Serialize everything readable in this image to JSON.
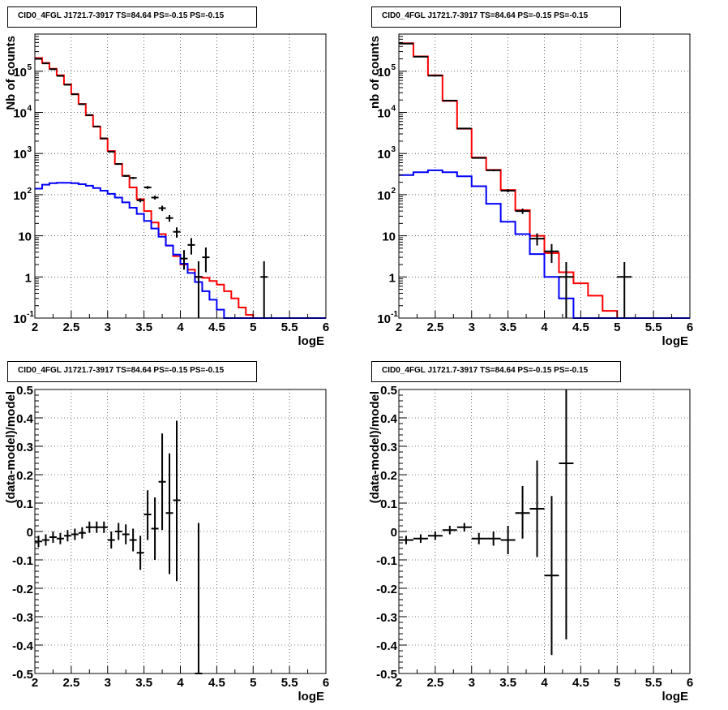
{
  "colors": {
    "total_model": "#ff0000",
    "source_model": "#0000ff",
    "data": "#000000"
  },
  "panels": [
    {
      "title": "CID0_4FGL J1721.7-3917 TS=84.64 PS=-0.15 PS=-0.15",
      "chart_data": {
        "type": "line",
        "xlabel": "logE",
        "ylabel": "Nb of counts",
        "xlim": [
          2,
          6
        ],
        "ylim": [
          0.1,
          800000
        ],
        "yscale": "log",
        "grid": true,
        "x_ticks": [
          "2",
          "2.5",
          "3",
          "3.5",
          "4",
          "4.5",
          "5",
          "5.5",
          "6"
        ],
        "y_ticks": [
          {
            "v": 0.1,
            "l": "10"
          },
          {
            "v": 1,
            "l": "1"
          },
          {
            "v": 10,
            "l": "10"
          },
          {
            "v": 100,
            "l": "10"
          },
          {
            "v": 1000,
            "l": "10"
          },
          {
            "v": 10000,
            "l": "10"
          },
          {
            "v": 100000,
            "l": "10"
          }
        ],
        "y_tick_exponents": [
          "-1",
          "",
          "",
          "2",
          "3",
          "4",
          "5"
        ],
        "bin_edges": [
          2.0,
          2.1,
          2.2,
          2.3,
          2.4,
          2.5,
          2.6,
          2.7,
          2.8,
          2.9,
          3.0,
          3.1,
          3.2,
          3.3,
          3.4,
          3.5,
          3.6,
          3.7,
          3.8,
          3.9,
          4.0,
          4.1,
          4.2,
          4.3,
          4.4,
          4.5,
          4.6,
          4.7,
          4.8,
          4.9,
          5.0,
          5.1,
          5.2,
          5.3,
          5.4,
          5.5,
          5.6,
          5.7,
          5.8,
          5.9,
          6.0
        ],
        "series": [
          {
            "name": "",
            "color_key": "total_model",
            "kind": "step",
            "values": [
              210000,
              160000,
              115000,
              80000,
              48000,
              28000,
              16000,
              8500,
              4500,
              2300,
              1150,
              560,
              290,
              150,
              78,
              40,
              21,
              11,
              5.8,
              3.2,
              2.0,
              1.5,
              1.0,
              0.95,
              0.8,
              0.65,
              0.45,
              0.3,
              0.18,
              0.12,
              0.1,
              0.1,
              0.1,
              0.1,
              0.1,
              0.1,
              0.1,
              0.1,
              0.1,
              0.1
            ]
          },
          {
            "name": "",
            "color_key": "source_model",
            "kind": "step",
            "values": [
              140,
              175,
              190,
              195,
              195,
              190,
              180,
              165,
              145,
              125,
              105,
              85,
              65,
              48,
              34,
              23,
              15,
              9.5,
              5.8,
              3.5,
              2.1,
              1.25,
              0.75,
              0.45,
              0.28,
              0.16,
              0.1,
              0.1,
              0.1,
              0.1,
              0.1,
              0.1,
              0.1,
              0.1,
              0.1,
              0.1,
              0.1,
              0.1,
              0.1,
              0.1
            ]
          }
        ],
        "data_points": [
          {
            "x": 2.05,
            "y": 200000,
            "lo": 199000,
            "hi": 201000
          },
          {
            "x": 2.15,
            "y": 155000,
            "lo": 154000,
            "hi": 156000
          },
          {
            "x": 2.25,
            "y": 112000,
            "lo": 111000,
            "hi": 113000
          },
          {
            "x": 2.35,
            "y": 77000,
            "lo": 76500,
            "hi": 77500
          },
          {
            "x": 2.45,
            "y": 47000,
            "lo": 46500,
            "hi": 47500
          },
          {
            "x": 2.55,
            "y": 27500,
            "lo": 27100,
            "hi": 27900
          },
          {
            "x": 2.65,
            "y": 15800,
            "lo": 15500,
            "hi": 16100
          },
          {
            "x": 2.75,
            "y": 8600,
            "lo": 8400,
            "hi": 8800
          },
          {
            "x": 2.85,
            "y": 4550,
            "lo": 4450,
            "hi": 4650
          },
          {
            "x": 2.95,
            "y": 2330,
            "lo": 2280,
            "hi": 2380
          },
          {
            "x": 3.05,
            "y": 1110,
            "lo": 1080,
            "hi": 1140
          },
          {
            "x": 3.15,
            "y": 555,
            "lo": 535,
            "hi": 575
          },
          {
            "x": 3.25,
            "y": 285,
            "lo": 270,
            "hi": 300
          },
          {
            "x": 3.35,
            "y": 255,
            "lo": 240,
            "hi": 270
          },
          {
            "x": 3.45,
            "y": 73,
            "lo": 65,
            "hi": 81
          },
          {
            "x": 3.55,
            "y": 150,
            "lo": 138,
            "hi": 162
          },
          {
            "x": 3.65,
            "y": 85,
            "lo": 76,
            "hi": 94
          },
          {
            "x": 3.75,
            "y": 47,
            "lo": 40,
            "hi": 54
          },
          {
            "x": 3.85,
            "y": 27,
            "lo": 22,
            "hi": 32
          },
          {
            "x": 3.95,
            "y": 12.5,
            "lo": 9,
            "hi": 16
          },
          {
            "x": 4.05,
            "y": 2.8,
            "lo": 1.5,
            "hi": 4.5
          },
          {
            "x": 4.15,
            "y": 6,
            "lo": 3.5,
            "hi": 8.8
          },
          {
            "x": 4.25,
            "y": 1,
            "lo": 0.1,
            "hi": 2.4
          },
          {
            "x": 4.35,
            "y": 3,
            "lo": 1.3,
            "hi": 5.2
          },
          {
            "x": 5.15,
            "y": 1,
            "lo": 0.1,
            "hi": 2.4
          }
        ]
      }
    },
    {
      "title": "CID0_4FGL J1721.7-3917 TS=84.64 PS=-0.15 PS=-0.15",
      "chart_data": {
        "type": "line",
        "xlabel": "logE",
        "ylabel": "nb of counts",
        "xlim": [
          2,
          6
        ],
        "ylim": [
          0.1,
          800000
        ],
        "yscale": "log",
        "grid": true,
        "x_ticks": [
          "2",
          "2.5",
          "3",
          "3.5",
          "4",
          "4.5",
          "5",
          "5.5",
          "6"
        ],
        "y_ticks": [
          {
            "v": 0.1,
            "l": "10"
          },
          {
            "v": 1,
            "l": "1"
          },
          {
            "v": 10,
            "l": "10"
          },
          {
            "v": 100,
            "l": "10"
          },
          {
            "v": 1000,
            "l": "10"
          },
          {
            "v": 10000,
            "l": "10"
          },
          {
            "v": 100000,
            "l": "10"
          }
        ],
        "y_tick_exponents": [
          "-1",
          "",
          "",
          "2",
          "3",
          "4",
          "5"
        ],
        "bin_edges": [
          2.0,
          2.2,
          2.4,
          2.6,
          2.8,
          3.0,
          3.2,
          3.4,
          3.6,
          3.8,
          4.0,
          4.2,
          4.4,
          4.6,
          4.8,
          5.0,
          5.2,
          5.4,
          5.6,
          5.8,
          6.0
        ],
        "series": [
          {
            "name": "",
            "color_key": "total_model",
            "kind": "step",
            "values": [
              480000,
              230000,
              80000,
              19000,
              4000,
              800,
              400,
              130,
              42,
              10,
              3.8,
              1.3,
              0.7,
              0.35,
              0.15,
              0.1,
              0.1,
              0.1,
              0.1,
              0.1
            ]
          },
          {
            "name": "",
            "color_key": "source_model",
            "kind": "step",
            "values": [
              300,
              350,
              390,
              350,
              280,
              160,
              60,
              22,
              11,
              3.6,
              1.0,
              0.3,
              0.1,
              0.1,
              0.1,
              0.1,
              0.1,
              0.1,
              0.1,
              0.1
            ]
          }
        ],
        "data_points": [
          {
            "x": 2.1,
            "y": 470000,
            "lo": 469000,
            "hi": 471000
          },
          {
            "x": 2.3,
            "y": 225000,
            "lo": 224000,
            "hi": 226000
          },
          {
            "x": 2.5,
            "y": 78000,
            "lo": 77500,
            "hi": 78500
          },
          {
            "x": 2.7,
            "y": 19300,
            "lo": 19100,
            "hi": 19500
          },
          {
            "x": 2.9,
            "y": 4050,
            "lo": 3990,
            "hi": 4110
          },
          {
            "x": 3.1,
            "y": 780,
            "lo": 752,
            "hi": 808
          },
          {
            "x": 3.3,
            "y": 390,
            "lo": 370,
            "hi": 410
          },
          {
            "x": 3.5,
            "y": 125,
            "lo": 114,
            "hi": 136
          },
          {
            "x": 3.7,
            "y": 40,
            "lo": 34,
            "hi": 46
          },
          {
            "x": 3.9,
            "y": 8.5,
            "lo": 5.8,
            "hi": 11.5
          },
          {
            "x": 4.1,
            "y": 4.2,
            "lo": 2.2,
            "hi": 6.3
          },
          {
            "x": 4.3,
            "y": 1,
            "lo": 0.1,
            "hi": 2.3
          },
          {
            "x": 5.1,
            "y": 1,
            "lo": 0.1,
            "hi": 2.3
          }
        ]
      }
    },
    {
      "title": "CID0_4FGL J1721.7-3917 TS=84.64 PS=-0.15 PS=-0.15",
      "chart_data": {
        "type": "scatter",
        "xlabel": "logE",
        "ylabel": "(data-model)/model",
        "xlim": [
          2,
          6
        ],
        "ylim": [
          -0.5,
          0.5
        ],
        "yscale": "linear",
        "grid": true,
        "x_ticks": [
          "2",
          "2.5",
          "3",
          "3.5",
          "4",
          "4.5",
          "5",
          "5.5",
          "6"
        ],
        "y_tick_values": [
          -0.5,
          -0.4,
          -0.3,
          -0.2,
          -0.1,
          0,
          0.1,
          0.2,
          0.3,
          0.4,
          0.5
        ],
        "y_tick_labels": [
          "-0.5",
          "-0.4",
          "-0.3",
          "-0.2",
          "-0.1",
          "0",
          "0.1",
          "0.2",
          "0.3",
          "0.4",
          "0.5"
        ],
        "x_half_width": 0.05,
        "data_points": [
          {
            "x": 2.05,
            "y": -0.035,
            "lo": -0.055,
            "hi": -0.015
          },
          {
            "x": 2.15,
            "y": -0.03,
            "lo": -0.05,
            "hi": -0.01
          },
          {
            "x": 2.25,
            "y": -0.02,
            "lo": -0.04,
            "hi": 0.0
          },
          {
            "x": 2.35,
            "y": -0.025,
            "lo": -0.045,
            "hi": -0.005
          },
          {
            "x": 2.45,
            "y": -0.015,
            "lo": -0.035,
            "hi": 0.005
          },
          {
            "x": 2.55,
            "y": -0.01,
            "lo": -0.03,
            "hi": 0.01
          },
          {
            "x": 2.65,
            "y": -0.005,
            "lo": -0.025,
            "hi": 0.015
          },
          {
            "x": 2.75,
            "y": 0.015,
            "lo": -0.005,
            "hi": 0.035
          },
          {
            "x": 2.85,
            "y": 0.015,
            "lo": -0.005,
            "hi": 0.035
          },
          {
            "x": 2.95,
            "y": 0.015,
            "lo": -0.005,
            "hi": 0.035
          },
          {
            "x": 3.05,
            "y": -0.03,
            "lo": -0.06,
            "hi": 0.0
          },
          {
            "x": 3.15,
            "y": 0.0,
            "lo": -0.03,
            "hi": 0.03
          },
          {
            "x": 3.25,
            "y": -0.01,
            "lo": -0.045,
            "hi": 0.025
          },
          {
            "x": 3.35,
            "y": -0.03,
            "lo": -0.07,
            "hi": 0.01
          },
          {
            "x": 3.45,
            "y": -0.075,
            "lo": -0.135,
            "hi": -0.015
          },
          {
            "x": 3.55,
            "y": 0.06,
            "lo": -0.03,
            "hi": 0.145
          },
          {
            "x": 3.65,
            "y": 0.01,
            "lo": -0.1,
            "hi": 0.12
          },
          {
            "x": 3.75,
            "y": 0.175,
            "lo": 0.005,
            "hi": 0.345
          },
          {
            "x": 3.85,
            "y": 0.065,
            "lo": -0.15,
            "hi": 0.275
          },
          {
            "x": 3.95,
            "y": 0.11,
            "lo": -0.175,
            "hi": 0.39
          },
          {
            "x": 4.25,
            "y": -0.5,
            "lo": -0.5,
            "hi": 0.03
          }
        ]
      }
    },
    {
      "title": "CID0_4FGL J1721.7-3917 TS=84.64 PS=-0.15 PS=-0.15",
      "chart_data": {
        "type": "scatter",
        "xlabel": "logE",
        "ylabel": "(data-model)/model",
        "xlim": [
          2,
          6
        ],
        "ylim": [
          -0.5,
          0.5
        ],
        "yscale": "linear",
        "grid": true,
        "x_ticks": [
          "2",
          "2.5",
          "3",
          "3.5",
          "4",
          "4.5",
          "5",
          "5.5",
          "6"
        ],
        "y_tick_values": [
          -0.5,
          -0.4,
          -0.3,
          -0.2,
          -0.1,
          0,
          0.1,
          0.2,
          0.3,
          0.4,
          0.5
        ],
        "y_tick_labels": [
          "-0.5",
          "-0.4",
          "-0.3",
          "-0.2",
          "-0.1",
          "0",
          "0.1",
          "0.2",
          "0.3",
          "0.4",
          "0.5"
        ],
        "x_half_width": 0.1,
        "data_points": [
          {
            "x": 2.1,
            "y": -0.03,
            "lo": -0.045,
            "hi": -0.015
          },
          {
            "x": 2.3,
            "y": -0.025,
            "lo": -0.04,
            "hi": -0.01
          },
          {
            "x": 2.5,
            "y": -0.015,
            "lo": -0.03,
            "hi": 0.0
          },
          {
            "x": 2.7,
            "y": 0.005,
            "lo": -0.01,
            "hi": 0.02
          },
          {
            "x": 2.9,
            "y": 0.015,
            "lo": 0.0,
            "hi": 0.03
          },
          {
            "x": 3.1,
            "y": -0.025,
            "lo": -0.045,
            "hi": -0.005
          },
          {
            "x": 3.3,
            "y": -0.025,
            "lo": -0.05,
            "hi": 0.0
          },
          {
            "x": 3.5,
            "y": -0.03,
            "lo": -0.08,
            "hi": 0.02
          },
          {
            "x": 3.7,
            "y": 0.065,
            "lo": -0.025,
            "hi": 0.16
          },
          {
            "x": 3.9,
            "y": 0.08,
            "lo": -0.09,
            "hi": 0.25
          },
          {
            "x": 4.1,
            "y": -0.155,
            "lo": -0.435,
            "hi": 0.125
          },
          {
            "x": 4.3,
            "y": 0.24,
            "lo": -0.38,
            "hi": 0.5
          }
        ]
      }
    }
  ]
}
